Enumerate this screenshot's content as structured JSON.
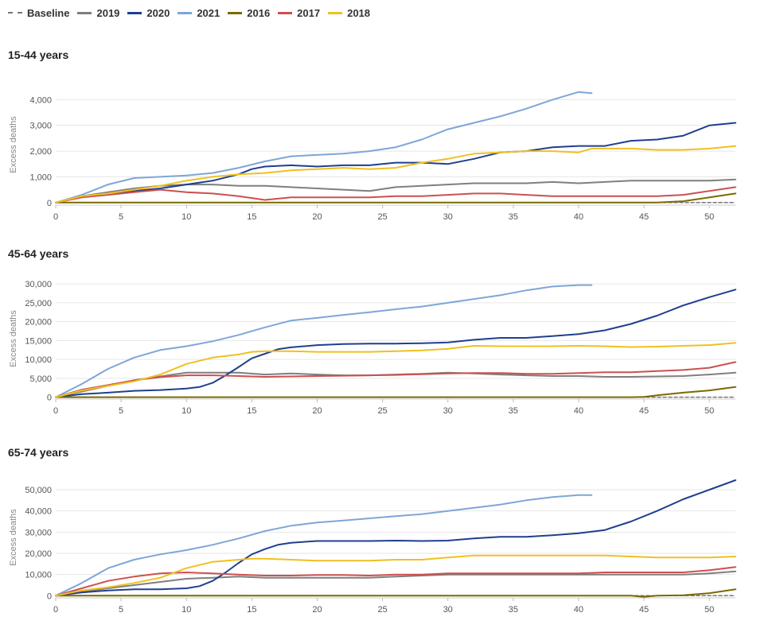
{
  "legend": [
    {
      "name": "Baseline",
      "color": "#777777",
      "dashed": true
    },
    {
      "name": "2019",
      "color": "#7f7f7f"
    },
    {
      "name": "2020",
      "color": "#1f3f8f"
    },
    {
      "name": "2021",
      "color": "#7ea6d8"
    },
    {
      "name": "2016",
      "color": "#7a6a00"
    },
    {
      "name": "2017",
      "color": "#cc5050"
    },
    {
      "name": "2018",
      "color": "#f0c020"
    }
  ],
  "chart_data": [
    {
      "type": "line",
      "title": "15-44 years",
      "ylabel": "Excess deaths",
      "xlim": [
        0,
        52
      ],
      "ylim": [
        -100,
        4600
      ],
      "xticks": [
        0,
        5,
        10,
        15,
        20,
        25,
        30,
        35,
        40,
        45,
        50
      ],
      "yticks": [
        0,
        1000,
        2000,
        3000,
        4000
      ],
      "ytick_labels": [
        "0",
        "1,000",
        "2,000",
        "3,000",
        "4,000"
      ],
      "grid": true,
      "legend_position": "top-left",
      "series": [
        {
          "name": "Baseline",
          "color": "#777777",
          "dashed": true,
          "x": [
            0,
            52
          ],
          "y": [
            0,
            0
          ]
        },
        {
          "name": "2019",
          "color": "#7f7f7f",
          "x": [
            0,
            2,
            4,
            6,
            8,
            10,
            12,
            14,
            16,
            18,
            20,
            22,
            24,
            26,
            28,
            30,
            32,
            34,
            36,
            38,
            40,
            42,
            44,
            46,
            48,
            50,
            52
          ],
          "y": [
            0,
            250,
            400,
            550,
            650,
            700,
            700,
            650,
            650,
            600,
            550,
            500,
            450,
            600,
            650,
            700,
            750,
            750,
            750,
            800,
            750,
            800,
            850,
            850,
            850,
            850,
            900
          ]
        },
        {
          "name": "2020",
          "color": "#1f3f8f",
          "x": [
            0,
            2,
            4,
            6,
            8,
            10,
            12,
            14,
            15,
            16,
            18,
            20,
            22,
            24,
            26,
            28,
            30,
            32,
            34,
            36,
            38,
            40,
            42,
            44,
            46,
            48,
            50,
            52
          ],
          "y": [
            0,
            250,
            350,
            450,
            550,
            700,
            850,
            1100,
            1300,
            1400,
            1450,
            1400,
            1450,
            1450,
            1550,
            1550,
            1500,
            1700,
            1950,
            2000,
            2150,
            2200,
            2200,
            2400,
            2450,
            2600,
            3000,
            3100
          ]
        },
        {
          "name": "2021",
          "color": "#7ea6d8",
          "x": [
            0,
            2,
            4,
            6,
            8,
            10,
            12,
            14,
            16,
            18,
            20,
            22,
            24,
            26,
            28,
            30,
            32,
            34,
            36,
            38,
            40,
            41
          ],
          "y": [
            0,
            300,
            700,
            950,
            1000,
            1050,
            1150,
            1350,
            1600,
            1800,
            1850,
            1900,
            2000,
            2150,
            2450,
            2850,
            3100,
            3350,
            3650,
            4000,
            4300,
            4250
          ]
        },
        {
          "name": "2016",
          "color": "#7a6a00",
          "x": [
            0,
            20,
            40,
            46,
            48,
            50,
            52
          ],
          "y": [
            0,
            0,
            0,
            0,
            50,
            200,
            350
          ]
        },
        {
          "name": "2017",
          "color": "#cc5050",
          "x": [
            0,
            2,
            4,
            6,
            8,
            10,
            12,
            14,
            16,
            18,
            20,
            22,
            24,
            26,
            28,
            30,
            32,
            34,
            36,
            38,
            40,
            42,
            44,
            46,
            48,
            50,
            52
          ],
          "y": [
            0,
            200,
            300,
            400,
            500,
            400,
            350,
            250,
            100,
            200,
            200,
            200,
            200,
            250,
            250,
            300,
            350,
            350,
            300,
            250,
            250,
            250,
            250,
            250,
            300,
            450,
            600
          ]
        },
        {
          "name": "2018",
          "color": "#f0c020",
          "x": [
            0,
            2,
            4,
            6,
            8,
            10,
            12,
            14,
            16,
            18,
            20,
            22,
            24,
            26,
            28,
            30,
            32,
            34,
            36,
            38,
            40,
            41,
            42,
            44,
            46,
            48,
            50,
            52
          ],
          "y": [
            0,
            250,
            350,
            500,
            650,
            850,
            1000,
            1100,
            1150,
            1250,
            1300,
            1350,
            1300,
            1350,
            1550,
            1700,
            1900,
            1950,
            2000,
            2000,
            1950,
            2100,
            2100,
            2100,
            2050,
            2050,
            2100,
            2200
          ]
        }
      ]
    },
    {
      "type": "line",
      "title": "45-64 years",
      "ylabel": "Excess deaths",
      "xlim": [
        0,
        52
      ],
      "ylim": [
        -500,
        31500
      ],
      "xticks": [
        0,
        5,
        10,
        15,
        20,
        25,
        30,
        35,
        40,
        45,
        50
      ],
      "yticks": [
        0,
        5000,
        10000,
        15000,
        20000,
        25000,
        30000
      ],
      "ytick_labels": [
        "0",
        "5,000",
        "10,000",
        "15,000",
        "20,000",
        "25,000",
        "30,000"
      ],
      "grid": true,
      "series": [
        {
          "name": "Baseline",
          "color": "#777777",
          "dashed": true,
          "x": [
            0,
            52
          ],
          "y": [
            0,
            0
          ]
        },
        {
          "name": "2019",
          "color": "#7f7f7f",
          "x": [
            0,
            2,
            4,
            6,
            8,
            10,
            12,
            14,
            16,
            18,
            20,
            22,
            24,
            26,
            28,
            30,
            32,
            34,
            36,
            38,
            40,
            42,
            44,
            46,
            48,
            50,
            52
          ],
          "y": [
            0,
            1500,
            3000,
            4500,
            5500,
            6500,
            6500,
            6500,
            6000,
            6300,
            6000,
            5800,
            5800,
            6000,
            6200,
            6500,
            6300,
            6000,
            5800,
            5600,
            5600,
            5400,
            5400,
            5500,
            5600,
            6000,
            6500
          ]
        },
        {
          "name": "2020",
          "color": "#1f3f8f",
          "x": [
            0,
            2,
            4,
            6,
            8,
            10,
            11,
            12,
            13,
            14,
            15,
            16,
            17,
            18,
            20,
            22,
            24,
            26,
            28,
            30,
            32,
            34,
            36,
            38,
            40,
            42,
            44,
            46,
            48,
            50,
            52
          ],
          "y": [
            0,
            800,
            1200,
            1700,
            1900,
            2300,
            2700,
            3800,
            5800,
            8000,
            10300,
            11500,
            12700,
            13200,
            13800,
            14100,
            14200,
            14200,
            14300,
            14500,
            15200,
            15700,
            15700,
            16200,
            16700,
            17700,
            19400,
            21600,
            24300,
            26500,
            28500
          ]
        },
        {
          "name": "2021",
          "color": "#7ea6d8",
          "x": [
            0,
            2,
            4,
            6,
            8,
            10,
            12,
            14,
            16,
            18,
            20,
            22,
            24,
            26,
            28,
            30,
            32,
            34,
            36,
            38,
            40,
            41
          ],
          "y": [
            0,
            3500,
            7500,
            10500,
            12500,
            13500,
            14800,
            16500,
            18500,
            20300,
            21000,
            21800,
            22500,
            23300,
            24000,
            25000,
            26000,
            27000,
            28300,
            29300,
            29700,
            29700
          ]
        },
        {
          "name": "2016",
          "color": "#7a6a00",
          "x": [
            0,
            20,
            40,
            44,
            45,
            46,
            48,
            50,
            52
          ],
          "y": [
            0,
            0,
            0,
            0,
            100,
            500,
            1200,
            1800,
            2700
          ]
        },
        {
          "name": "2017",
          "color": "#cc5050",
          "x": [
            0,
            2,
            4,
            6,
            8,
            10,
            12,
            14,
            16,
            18,
            20,
            22,
            24,
            26,
            28,
            30,
            32,
            34,
            36,
            38,
            40,
            42,
            44,
            46,
            48,
            50,
            52
          ],
          "y": [
            0,
            2000,
            3200,
            4500,
            5300,
            5800,
            5800,
            5600,
            5400,
            5500,
            5600,
            5700,
            5800,
            5900,
            6100,
            6300,
            6400,
            6400,
            6200,
            6200,
            6400,
            6600,
            6600,
            6900,
            7200,
            7800,
            9300
          ]
        },
        {
          "name": "2018",
          "color": "#f0c020",
          "x": [
            0,
            2,
            4,
            6,
            8,
            10,
            12,
            14,
            15,
            16,
            18,
            20,
            22,
            24,
            26,
            28,
            30,
            32,
            34,
            36,
            38,
            40,
            42,
            44,
            46,
            48,
            50,
            52
          ],
          "y": [
            0,
            1800,
            3000,
            4200,
            6000,
            8800,
            10500,
            11300,
            12000,
            12200,
            12200,
            12000,
            12000,
            12000,
            12200,
            12400,
            12800,
            13600,
            13500,
            13500,
            13500,
            13600,
            13500,
            13300,
            13400,
            13600,
            13800,
            14400
          ]
        }
      ]
    },
    {
      "type": "line",
      "title": "65-74 years",
      "ylabel": "Excess deaths",
      "xlim": [
        0,
        52
      ],
      "ylim": [
        -1000,
        56000
      ],
      "xticks": [
        0,
        5,
        10,
        15,
        20,
        25,
        30,
        35,
        40,
        45,
        50
      ],
      "yticks": [
        0,
        10000,
        20000,
        30000,
        40000,
        50000
      ],
      "ytick_labels": [
        "0",
        "10,000",
        "20,000",
        "30,000",
        "40,000",
        "50,000"
      ],
      "grid": true,
      "series": [
        {
          "name": "Baseline",
          "color": "#777777",
          "dashed": true,
          "x": [
            0,
            52
          ],
          "y": [
            0,
            0
          ]
        },
        {
          "name": "2019",
          "color": "#7f7f7f",
          "x": [
            0,
            2,
            4,
            6,
            8,
            10,
            12,
            14,
            16,
            18,
            20,
            22,
            24,
            26,
            28,
            30,
            32,
            34,
            36,
            38,
            40,
            42,
            44,
            46,
            48,
            50,
            52
          ],
          "y": [
            0,
            2000,
            3500,
            5000,
            6500,
            8000,
            8500,
            9000,
            8500,
            8500,
            8500,
            8500,
            8500,
            9000,
            9500,
            10000,
            10000,
            10000,
            10000,
            10000,
            10000,
            10000,
            10000,
            10000,
            10000,
            10500,
            11500
          ]
        },
        {
          "name": "2020",
          "color": "#1f3f8f",
          "x": [
            0,
            2,
            4,
            6,
            8,
            10,
            11,
            12,
            13,
            14,
            15,
            16,
            17,
            18,
            20,
            22,
            24,
            26,
            28,
            30,
            32,
            34,
            36,
            38,
            40,
            42,
            44,
            46,
            48,
            50,
            52
          ],
          "y": [
            0,
            1500,
            2500,
            3000,
            3000,
            3500,
            4500,
            7000,
            11000,
            15500,
            19500,
            22000,
            24000,
            25000,
            25800,
            25800,
            25800,
            26000,
            25800,
            26000,
            27000,
            27800,
            27800,
            28500,
            29500,
            31000,
            35000,
            40000,
            45500,
            50000,
            54500
          ]
        },
        {
          "name": "2021",
          "color": "#7ea6d8",
          "x": [
            0,
            2,
            4,
            6,
            8,
            10,
            12,
            14,
            16,
            18,
            20,
            22,
            24,
            26,
            28,
            30,
            32,
            34,
            36,
            38,
            40,
            41
          ],
          "y": [
            0,
            6000,
            13000,
            17000,
            19500,
            21500,
            24000,
            27000,
            30500,
            33000,
            34500,
            35500,
            36500,
            37500,
            38500,
            40000,
            41500,
            43000,
            45000,
            46500,
            47500,
            47500
          ]
        },
        {
          "name": "2016",
          "color": "#7a6a00",
          "x": [
            0,
            20,
            40,
            44,
            45,
            46,
            48,
            50,
            52
          ],
          "y": [
            0,
            0,
            0,
            0,
            -500,
            0,
            200,
            1200,
            3000
          ]
        },
        {
          "name": "2017",
          "color": "#cc5050",
          "x": [
            0,
            2,
            4,
            6,
            8,
            10,
            12,
            14,
            16,
            18,
            20,
            22,
            24,
            26,
            28,
            30,
            32,
            34,
            36,
            38,
            40,
            42,
            44,
            46,
            48,
            50,
            52
          ],
          "y": [
            0,
            3500,
            7000,
            9000,
            10500,
            11000,
            10500,
            10000,
            9500,
            9500,
            9800,
            9800,
            9500,
            10000,
            10000,
            10500,
            10500,
            10500,
            10500,
            10500,
            10500,
            11000,
            11000,
            11000,
            11000,
            12000,
            13500
          ]
        },
        {
          "name": "2018",
          "color": "#f0c020",
          "x": [
            0,
            2,
            4,
            6,
            8,
            10,
            12,
            14,
            15,
            16,
            18,
            20,
            22,
            24,
            26,
            28,
            30,
            32,
            34,
            36,
            38,
            40,
            42,
            44,
            46,
            48,
            50,
            52
          ],
          "y": [
            0,
            2500,
            4000,
            6000,
            8500,
            13000,
            16000,
            17000,
            17500,
            17500,
            17000,
            16500,
            16500,
            16500,
            17000,
            17000,
            18000,
            19000,
            19000,
            19000,
            19000,
            19000,
            19000,
            18500,
            18000,
            18000,
            18000,
            18500
          ]
        }
      ]
    }
  ]
}
